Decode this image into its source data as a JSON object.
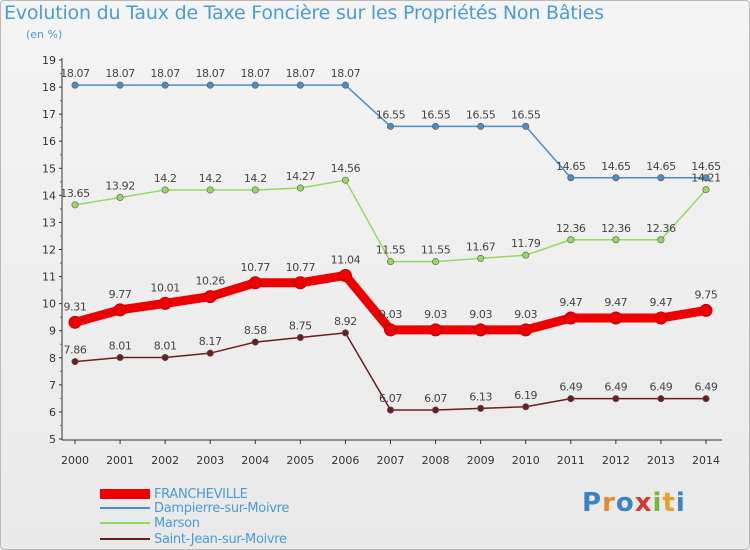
{
  "title": "Evolution du Taux de Taxe Foncière sur les Propriétés Non Bâties",
  "unit_label": "(en %)",
  "logo": {
    "letters": [
      "P",
      "r",
      "o",
      "x",
      "i",
      "t",
      "i"
    ],
    "colors": [
      "#3a84c4",
      "#e48a2b",
      "#3a84c4",
      "#d7372f",
      "#79b43e",
      "#e2a22e",
      "#3a84c4"
    ]
  },
  "chart_data": {
    "type": "line",
    "x": [
      "2000",
      "2001",
      "2002",
      "2003",
      "2004",
      "2005",
      "2006",
      "2007",
      "2008",
      "2009",
      "2010",
      "2011",
      "2012",
      "2013",
      "2014"
    ],
    "ylim": [
      5,
      19
    ],
    "yticks": [
      "5",
      "6",
      "7",
      "8",
      "9",
      "10",
      "11",
      "12",
      "13",
      "14",
      "15",
      "16",
      "17",
      "18",
      "19"
    ],
    "grid": false,
    "legend_position": "bottom-left",
    "series": [
      {
        "name": "Dampierre-sur-Moivre",
        "color": "#4a8ec8",
        "values": [
          18.07,
          18.07,
          18.07,
          18.07,
          18.07,
          18.07,
          18.07,
          16.55,
          16.55,
          16.55,
          16.55,
          14.65,
          14.65,
          14.65,
          14.65
        ],
        "labels": [
          "18.07",
          "18.07",
          "18.07",
          "18.07",
          "18.07",
          "18.07",
          "18.07",
          "16.55",
          "16.55",
          "16.55",
          "16.55",
          "14.65",
          "14.65",
          "14.65",
          "14.65"
        ]
      },
      {
        "name": "Marson",
        "color": "#94da60",
        "values": [
          13.65,
          13.92,
          14.2,
          14.2,
          14.2,
          14.27,
          14.56,
          11.55,
          11.55,
          11.67,
          11.79,
          12.36,
          12.36,
          12.36,
          14.21
        ],
        "labels": [
          "13.65",
          "13.92",
          "14.2",
          "14.2",
          "14.2",
          "14.27",
          "14.56",
          "11.55",
          "11.55",
          "11.67",
          "11.79",
          "12.36",
          "12.36",
          "12.36",
          "14.21"
        ]
      },
      {
        "name": "FRANCHEVILLE",
        "color": "#ee0000",
        "values": [
          9.31,
          9.77,
          10.01,
          10.26,
          10.77,
          10.77,
          11.04,
          9.03,
          9.03,
          9.03,
          9.03,
          9.47,
          9.47,
          9.47,
          9.75
        ],
        "labels": [
          "9.31",
          "9.77",
          "10.01",
          "10.26",
          "10.77",
          "10.77",
          "11.04",
          "9.03",
          "9.03",
          "9.03",
          "9.03",
          "9.47",
          "9.47",
          "9.47",
          "9.75"
        ]
      },
      {
        "name": "Saint-Jean-sur-Moivre",
        "color": "#6b1e1e",
        "values": [
          7.86,
          8.01,
          8.01,
          8.17,
          8.58,
          8.75,
          8.92,
          6.07,
          6.07,
          6.13,
          6.19,
          6.49,
          6.49,
          6.49,
          6.49
        ],
        "labels": [
          "7.86",
          "8.01",
          "8.01",
          "8.17",
          "8.58",
          "8.75",
          "8.92",
          "6.07",
          "6.07",
          "6.13",
          "6.19",
          "6.49",
          "6.49",
          "6.49",
          "6.49"
        ]
      }
    ],
    "legend_order": [
      "FRANCHEVILLE",
      "Dampierre-sur-Moivre",
      "Marson",
      "Saint-Jean-sur-Moivre"
    ]
  }
}
